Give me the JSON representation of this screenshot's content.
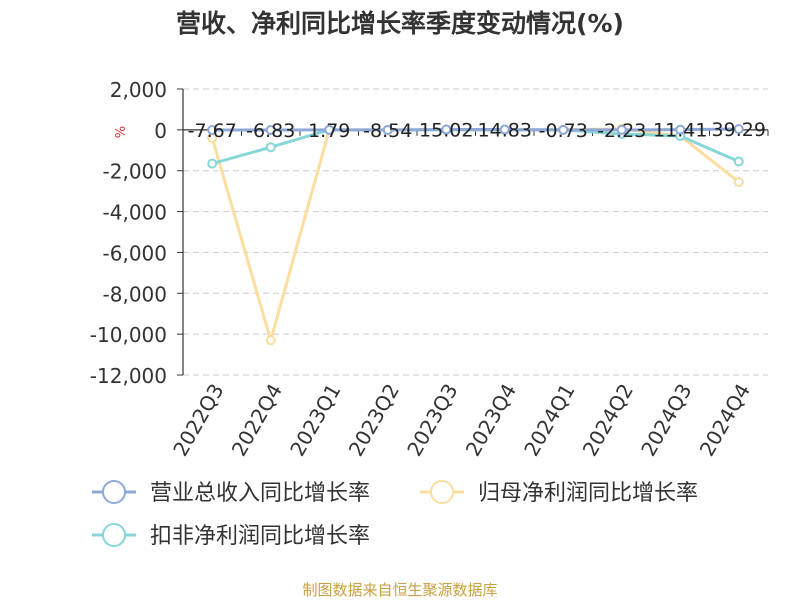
{
  "chart_data": {
    "type": "line",
    "title": "营收、净利同比增长率季度变动情况(%)",
    "ylabel": "%",
    "ylim": [
      -12000,
      2000
    ],
    "yticks": [
      2000,
      0,
      -2000,
      -4000,
      -6000,
      -8000,
      -10000,
      -12000
    ],
    "ytick_labels": [
      "2,000",
      "0",
      "-2,000",
      "-4,000",
      "-6,000",
      "-8,000",
      "-10,000",
      "-12,000"
    ],
    "grid": true,
    "legend_position": "bottom",
    "categories": [
      "2022Q3",
      "2022Q4",
      "2023Q1",
      "2023Q2",
      "2023Q3",
      "2023Q4",
      "2024Q1",
      "2024Q2",
      "2024Q3",
      "2024Q4"
    ],
    "series": [
      {
        "name": "营业总收入同比增长率",
        "color": "#8fa8d8",
        "values": [
          -7.67,
          -6.83,
          1.79,
          -8.54,
          15.02,
          14.83,
          -0.73,
          -2.23,
          11.41,
          39.29
        ],
        "labels": [
          "-7.67",
          "-6.83",
          "1.79",
          "-8.54",
          "15.02",
          "14.83",
          "-0.73",
          "-2.23",
          "11.41",
          "39.29"
        ]
      },
      {
        "name": "归母净利润同比增长率",
        "color": "#fbdd9f",
        "values": [
          -400,
          -10300,
          0,
          0,
          0,
          0,
          0,
          50,
          -300,
          -2550
        ]
      },
      {
        "name": "扣非净利润同比增长率",
        "color": "#88d6d8",
        "values": [
          -1650,
          -850,
          0,
          0,
          0,
          0,
          0,
          -200,
          -300,
          -1550
        ]
      }
    ]
  },
  "source": "制图数据来自恒生聚源数据库"
}
